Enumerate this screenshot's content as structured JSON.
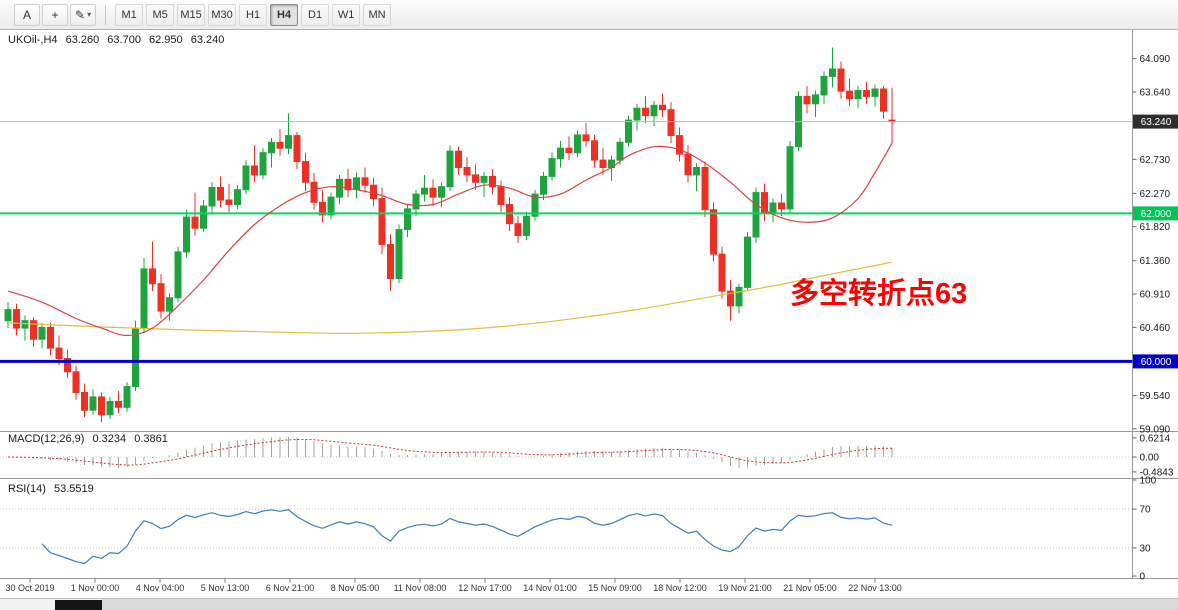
{
  "toolbar": {
    "tools": [
      {
        "name": "cursor-tool",
        "glyph": "A"
      },
      {
        "name": "crosshair-tool",
        "glyph": "+"
      },
      {
        "name": "draw-tool",
        "glyph": "✎",
        "dropdown": true
      }
    ],
    "timeframes": [
      {
        "label": "M1"
      },
      {
        "label": "M5"
      },
      {
        "label": "M15"
      },
      {
        "label": "M30"
      },
      {
        "label": "H1"
      },
      {
        "label": "H4",
        "active": true
      },
      {
        "label": "D1"
      },
      {
        "label": "W1"
      },
      {
        "label": "MN"
      }
    ]
  },
  "header": {
    "symbol": "UKOil-,H4",
    "open": "63.260",
    "high": "63.700",
    "low": "62.950",
    "close": "63.240"
  },
  "indicators": {
    "macd": {
      "label": "MACD(12,26,9)",
      "value": "0.3234",
      "signal_value": "0.3861",
      "axis": [
        "0.6214",
        "0.00",
        "-0.4843"
      ],
      "signal_color": "#d03030",
      "histogram_color": "#a0a0a0"
    },
    "rsi": {
      "label": "RSI(14)",
      "value": "53.5519",
      "axis": [
        "100",
        "70",
        "30",
        "0"
      ],
      "levels": [
        70,
        30
      ],
      "color": "#3f7cc0"
    }
  },
  "annotation": {
    "text": "多空转折点63",
    "color": "#ff0000"
  },
  "chart_data": {
    "type": "candlestick",
    "symbol": "UKOil-",
    "timeframe": "H4",
    "current_bar": {
      "open": 63.26,
      "high": 63.7,
      "low": 62.95,
      "close": 63.24
    },
    "price_range": {
      "min": 59.06,
      "max": 64.45
    },
    "price_axis_ticks": [
      "64.090",
      "63.640",
      "62.730",
      "62.270",
      "61.820",
      "61.360",
      "60.910",
      "60.460",
      "59.540",
      "59.090"
    ],
    "levels": [
      {
        "price": 63.24,
        "label": "63.240",
        "line": "#b8b8b8",
        "bg": "#2e2e2e",
        "w": 1
      },
      {
        "price": 62.0,
        "label": "62.000",
        "line": "#00d75e",
        "bg": "#00c455",
        "w": 2
      },
      {
        "price": 60.0,
        "label": "60.000",
        "line": "#0000cc",
        "bg": "#0000cc",
        "w": 3
      }
    ],
    "up_color": "#1fa33f",
    "down_color": "#ee3024",
    "candles": [
      [
        60.55,
        60.8,
        60.45,
        60.7
      ],
      [
        60.7,
        60.78,
        60.35,
        60.45
      ],
      [
        60.45,
        60.62,
        60.28,
        60.55
      ],
      [
        60.55,
        60.6,
        60.2,
        60.3
      ],
      [
        60.3,
        60.52,
        60.18,
        60.46
      ],
      [
        60.46,
        60.52,
        60.08,
        60.18
      ],
      [
        60.18,
        60.35,
        59.95,
        60.04
      ],
      [
        60.04,
        60.16,
        59.78,
        59.86
      ],
      [
        59.86,
        59.94,
        59.48,
        59.58
      ],
      [
        59.58,
        59.7,
        59.25,
        59.34
      ],
      [
        59.34,
        59.62,
        59.28,
        59.52
      ],
      [
        59.52,
        59.58,
        59.18,
        59.28
      ],
      [
        59.28,
        59.52,
        59.22,
        59.46
      ],
      [
        59.46,
        59.6,
        59.3,
        59.38
      ],
      [
        59.38,
        59.72,
        59.32,
        59.66
      ],
      [
        59.66,
        60.55,
        59.6,
        60.45
      ],
      [
        60.45,
        61.4,
        60.38,
        61.25
      ],
      [
        61.25,
        61.62,
        60.95,
        61.05
      ],
      [
        61.05,
        61.18,
        60.58,
        60.68
      ],
      [
        60.68,
        60.92,
        60.55,
        60.86
      ],
      [
        60.86,
        61.55,
        60.8,
        61.48
      ],
      [
        61.48,
        62.05,
        61.4,
        61.95
      ],
      [
        61.95,
        62.28,
        61.7,
        61.8
      ],
      [
        61.8,
        62.18,
        61.75,
        62.1
      ],
      [
        62.1,
        62.42,
        62.0,
        62.35
      ],
      [
        62.35,
        62.5,
        62.08,
        62.18
      ],
      [
        62.18,
        62.4,
        62.02,
        62.12
      ],
      [
        62.12,
        62.38,
        62.06,
        62.32
      ],
      [
        62.32,
        62.72,
        62.26,
        62.64
      ],
      [
        62.64,
        62.92,
        62.42,
        62.52
      ],
      [
        62.52,
        62.88,
        62.46,
        62.82
      ],
      [
        62.82,
        63.02,
        62.62,
        62.96
      ],
      [
        62.96,
        63.14,
        62.78,
        62.88
      ],
      [
        62.88,
        63.35,
        62.8,
        63.05
      ],
      [
        63.05,
        63.1,
        62.6,
        62.7
      ],
      [
        62.7,
        62.82,
        62.3,
        62.42
      ],
      [
        62.42,
        62.55,
        62.05,
        62.15
      ],
      [
        62.15,
        62.32,
        61.88,
        61.98
      ],
      [
        61.98,
        62.28,
        61.92,
        62.22
      ],
      [
        62.22,
        62.52,
        62.12,
        62.46
      ],
      [
        62.46,
        62.6,
        62.22,
        62.32
      ],
      [
        62.32,
        62.55,
        62.2,
        62.48
      ],
      [
        62.48,
        62.62,
        62.28,
        62.38
      ],
      [
        62.38,
        62.48,
        62.1,
        62.2
      ],
      [
        62.2,
        62.35,
        61.45,
        61.58
      ],
      [
        61.58,
        61.72,
        60.95,
        61.12
      ],
      [
        61.12,
        61.85,
        61.06,
        61.78
      ],
      [
        61.78,
        62.12,
        61.68,
        62.06
      ],
      [
        62.06,
        62.32,
        61.96,
        62.26
      ],
      [
        62.26,
        62.52,
        62.16,
        62.34
      ],
      [
        62.34,
        62.46,
        62.1,
        62.22
      ],
      [
        62.22,
        62.42,
        62.08,
        62.36
      ],
      [
        62.36,
        62.92,
        62.3,
        62.84
      ],
      [
        62.84,
        62.9,
        62.52,
        62.62
      ],
      [
        62.62,
        62.76,
        62.42,
        62.52
      ],
      [
        62.52,
        62.66,
        62.32,
        62.42
      ],
      [
        62.42,
        62.56,
        62.22,
        62.5
      ],
      [
        62.5,
        62.6,
        62.26,
        62.36
      ],
      [
        62.36,
        62.44,
        62.02,
        62.12
      ],
      [
        62.12,
        62.22,
        61.76,
        61.86
      ],
      [
        61.86,
        61.96,
        61.6,
        61.7
      ],
      [
        61.7,
        62.02,
        61.64,
        61.96
      ],
      [
        61.96,
        62.32,
        61.9,
        62.26
      ],
      [
        62.26,
        62.56,
        62.18,
        62.5
      ],
      [
        62.5,
        62.82,
        62.44,
        62.74
      ],
      [
        62.74,
        62.98,
        62.62,
        62.88
      ],
      [
        62.88,
        63.04,
        62.72,
        62.82
      ],
      [
        62.82,
        63.12,
        62.76,
        63.06
      ],
      [
        63.06,
        63.22,
        62.9,
        62.98
      ],
      [
        62.98,
        63.06,
        62.62,
        62.72
      ],
      [
        62.72,
        62.88,
        62.52,
        62.62
      ],
      [
        62.62,
        62.78,
        62.44,
        62.72
      ],
      [
        62.72,
        63.02,
        62.66,
        62.96
      ],
      [
        62.96,
        63.32,
        62.9,
        63.26
      ],
      [
        63.26,
        63.48,
        63.12,
        63.42
      ],
      [
        63.42,
        63.58,
        63.22,
        63.32
      ],
      [
        63.32,
        63.52,
        63.18,
        63.46
      ],
      [
        63.46,
        63.62,
        63.3,
        63.4
      ],
      [
        63.4,
        63.5,
        62.95,
        63.05
      ],
      [
        63.05,
        63.16,
        62.7,
        62.8
      ],
      [
        62.8,
        62.92,
        62.42,
        62.52
      ],
      [
        62.52,
        62.68,
        62.3,
        62.62
      ],
      [
        62.62,
        62.7,
        61.95,
        62.05
      ],
      [
        62.05,
        62.15,
        61.35,
        61.45
      ],
      [
        61.45,
        61.55,
        60.85,
        60.95
      ],
      [
        60.95,
        61.1,
        60.55,
        60.75
      ],
      [
        60.75,
        61.05,
        60.65,
        61.0
      ],
      [
        61.0,
        61.75,
        60.95,
        61.68
      ],
      [
        61.68,
        62.35,
        61.6,
        62.28
      ],
      [
        62.28,
        62.4,
        61.9,
        62.0
      ],
      [
        62.0,
        62.2,
        61.88,
        62.14
      ],
      [
        62.14,
        62.26,
        61.96,
        62.06
      ],
      [
        62.06,
        62.98,
        62.0,
        62.9
      ],
      [
        62.9,
        63.65,
        62.84,
        63.58
      ],
      [
        63.58,
        63.72,
        63.35,
        63.48
      ],
      [
        63.48,
        63.66,
        63.3,
        63.6
      ],
      [
        63.6,
        63.92,
        63.48,
        63.85
      ],
      [
        63.85,
        64.24,
        63.7,
        63.95
      ],
      [
        63.95,
        64.05,
        63.55,
        63.65
      ],
      [
        63.65,
        63.82,
        63.45,
        63.55
      ],
      [
        63.55,
        63.72,
        63.42,
        63.66
      ],
      [
        63.66,
        63.78,
        63.48,
        63.58
      ],
      [
        63.58,
        63.74,
        63.44,
        63.68
      ],
      [
        63.68,
        63.72,
        63.28,
        63.38
      ],
      [
        63.26,
        63.7,
        62.95,
        63.24
      ]
    ],
    "ma_fast": {
      "color": "#e04040",
      "points": [
        [
          0,
          60.95
        ],
        [
          4,
          60.8
        ],
        [
          8,
          60.58
        ],
        [
          11,
          60.45
        ],
        [
          14,
          60.35
        ],
        [
          17,
          60.45
        ],
        [
          20,
          60.75
        ],
        [
          23,
          61.1
        ],
        [
          26,
          61.5
        ],
        [
          29,
          61.85
        ],
        [
          32,
          62.1
        ],
        [
          35,
          62.28
        ],
        [
          38,
          62.36
        ],
        [
          41,
          62.32
        ],
        [
          44,
          62.24
        ],
        [
          47,
          62.12
        ],
        [
          50,
          62.12
        ],
        [
          53,
          62.26
        ],
        [
          56,
          62.38
        ],
        [
          59,
          62.34
        ],
        [
          62,
          62.22
        ],
        [
          65,
          62.26
        ],
        [
          68,
          62.45
        ],
        [
          71,
          62.62
        ],
        [
          73,
          62.78
        ],
        [
          76,
          62.9
        ],
        [
          79,
          62.86
        ],
        [
          82,
          62.68
        ],
        [
          85,
          62.42
        ],
        [
          88,
          62.12
        ],
        [
          91,
          61.94
        ],
        [
          94,
          61.88
        ],
        [
          97,
          61.94
        ],
        [
          100,
          62.2
        ],
        [
          102,
          62.55
        ],
        [
          104,
          62.95
        ]
      ]
    },
    "ma_slow": {
      "color": "#e3bd42",
      "points": [
        [
          0,
          60.52
        ],
        [
          10,
          60.47
        ],
        [
          20,
          60.43
        ],
        [
          30,
          60.4
        ],
        [
          40,
          60.38
        ],
        [
          50,
          60.41
        ],
        [
          58,
          60.47
        ],
        [
          66,
          60.57
        ],
        [
          74,
          60.7
        ],
        [
          82,
          60.86
        ],
        [
          90,
          61.02
        ],
        [
          96,
          61.16
        ],
        [
          104,
          61.34
        ]
      ]
    },
    "macd_params": [
      12,
      26,
      9
    ],
    "macd_range": {
      "min": -0.65,
      "max": 0.78
    },
    "rsi_period": 14,
    "time_axis": [
      "30 Oct 2019",
      "1 Nov 00:00",
      "4 Nov 04:00",
      "5 Nov 13:00",
      "6 Nov 21:00",
      "8 Nov 05:00",
      "11 Nov 08:00",
      "12 Nov 17:00",
      "14 Nov 01:00",
      "15 Nov 09:00",
      "18 Nov 12:00",
      "19 Nov 21:00",
      "21 Nov 05:00",
      "22 Nov 13:00"
    ]
  }
}
